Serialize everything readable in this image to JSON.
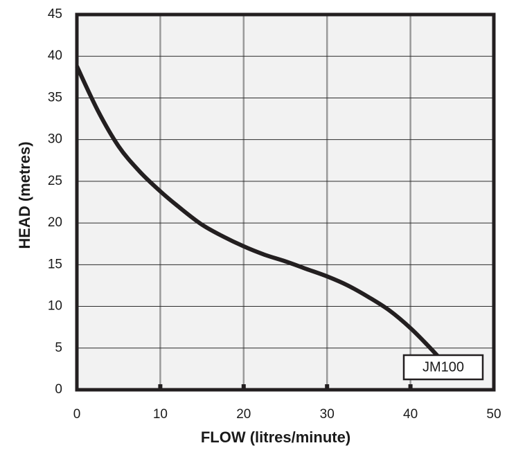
{
  "chart_data": {
    "type": "line",
    "xlabel": "FLOW (litres/minute)",
    "ylabel": "HEAD (metres)",
    "xlim": [
      0,
      50
    ],
    "ylim": [
      0,
      45
    ],
    "xticks": [
      "0",
      "10",
      "20",
      "30",
      "40",
      "50"
    ],
    "yticks": [
      "0",
      "5",
      "10",
      "15",
      "20",
      "25",
      "30",
      "35",
      "40",
      "45"
    ],
    "grid": "on",
    "plot_background": "#f2f2f2",
    "line_color": "#231f20",
    "legend_position": "bottom-right",
    "series": [
      {
        "name": "JM100",
        "x": [
          0,
          2.5,
          5,
          7.5,
          10,
          12.5,
          15,
          17.5,
          20,
          22.5,
          25,
          27.5,
          30,
          32.5,
          35,
          37.5,
          40,
          42,
          43.5
        ],
        "y": [
          38.8,
          33.5,
          29.2,
          26.2,
          23.8,
          21.7,
          19.8,
          18.4,
          17.2,
          16.2,
          15.4,
          14.5,
          13.6,
          12.5,
          11.1,
          9.5,
          7.4,
          5.4,
          3.8
        ]
      }
    ]
  }
}
